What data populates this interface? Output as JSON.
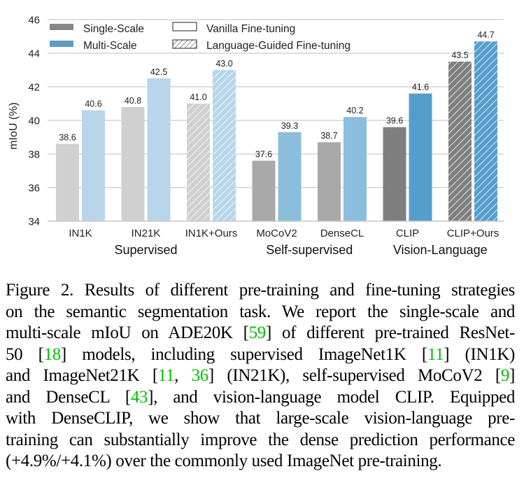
{
  "chart_data": {
    "type": "bar",
    "title": "",
    "xlabel": "",
    "ylabel": "mIoU (%)",
    "ylim": [
      34,
      46
    ],
    "yticks": [
      34,
      36,
      38,
      40,
      42,
      44,
      46
    ],
    "grid": "horizontal",
    "legend": {
      "placement": "top-left",
      "entries": [
        {
          "label": "Single-Scale",
          "kind": "color",
          "color": "#878787"
        },
        {
          "label": "Vanilla Fine-tuning",
          "kind": "pattern",
          "pattern": "none"
        },
        {
          "label": "Multi-Scale",
          "kind": "color",
          "color": "#5f9dc0"
        },
        {
          "label": "Language-Guided Fine-tuning",
          "kind": "pattern",
          "pattern": "hatch"
        }
      ]
    },
    "categories": [
      "IN1K",
      "IN21K",
      "IN1K+Ours",
      "MoCoV2",
      "DenseCL",
      "CLIP",
      "CLIP+Ours"
    ],
    "groups": [
      {
        "label": "Supervised",
        "categories": [
          "IN1K",
          "IN21K",
          "IN1K+Ours"
        ]
      },
      {
        "label": "Self-supervised",
        "categories": [
          "MoCoV2",
          "DenseCL"
        ]
      },
      {
        "label": "Vision-Language",
        "categories": [
          "CLIP",
          "CLIP+Ours"
        ]
      }
    ],
    "series": [
      {
        "name": "Single-Scale",
        "values": [
          38.6,
          40.8,
          41.0,
          37.6,
          38.7,
          39.6,
          43.5
        ]
      },
      {
        "name": "Multi-Scale",
        "values": [
          40.6,
          42.5,
          43.0,
          39.3,
          40.2,
          41.6,
          44.7
        ]
      }
    ],
    "value_labels": {
      "Single-Scale": [
        "38.6",
        "40.8",
        "41.0",
        "37.6",
        "38.7",
        "39.6",
        "43.5"
      ],
      "Multi-Scale": [
        "40.6",
        "42.5",
        "43.0",
        "39.3",
        "40.2",
        "41.6",
        "44.7"
      ]
    },
    "hatched": [
      false,
      false,
      true,
      false,
      false,
      false,
      true
    ],
    "bar_colors": {
      "Single-Scale": [
        "#d0d0d0",
        "#d0d0d0",
        "#d0d0d0",
        "#a9a9a9",
        "#a9a9a9",
        "#7f7f7f",
        "#7f7f7f"
      ],
      "Multi-Scale": [
        "#b8d5ea",
        "#b8d5ea",
        "#b8d5ea",
        "#8abedc",
        "#8abedc",
        "#559dcd",
        "#559dcd"
      ]
    }
  },
  "caption": {
    "lines": [
      [
        {
          "t": "Figure 2. Results of different pre-training and fine-tuning strategies"
        }
      ],
      [
        {
          "t": "on the semantic segmentation task. We report the single-scale and"
        }
      ],
      [
        {
          "t": "multi-scale mIoU on ADE20K ["
        },
        {
          "t": "59",
          "ref": true
        },
        {
          "t": "] of different pre-trained ResNet-"
        }
      ],
      [
        {
          "t": "50 ["
        },
        {
          "t": "18",
          "ref": true
        },
        {
          "t": "] models, including supervised ImageNet1K ["
        },
        {
          "t": "11",
          "ref": true
        },
        {
          "t": "] (IN1K)"
        }
      ],
      [
        {
          "t": "and ImageNet21K ["
        },
        {
          "t": "11",
          "ref": true
        },
        {
          "t": ", "
        },
        {
          "t": "36",
          "ref": true
        },
        {
          "t": "] (IN21K), self-supervised MoCoV2 ["
        },
        {
          "t": "9",
          "ref": true
        },
        {
          "t": "]"
        }
      ],
      [
        {
          "t": "and DenseCL ["
        },
        {
          "t": "43",
          "ref": true
        },
        {
          "t": "], and vision-language model CLIP. Equipped"
        }
      ],
      [
        {
          "t": "with DenseCLIP, we show that large-scale vision-language pre-"
        }
      ],
      [
        {
          "t": "training can substantially improve the dense prediction performance"
        }
      ],
      [
        {
          "t": "(+4.9%/+4.1%) over the commonly used ImageNet pre-training."
        }
      ]
    ]
  }
}
